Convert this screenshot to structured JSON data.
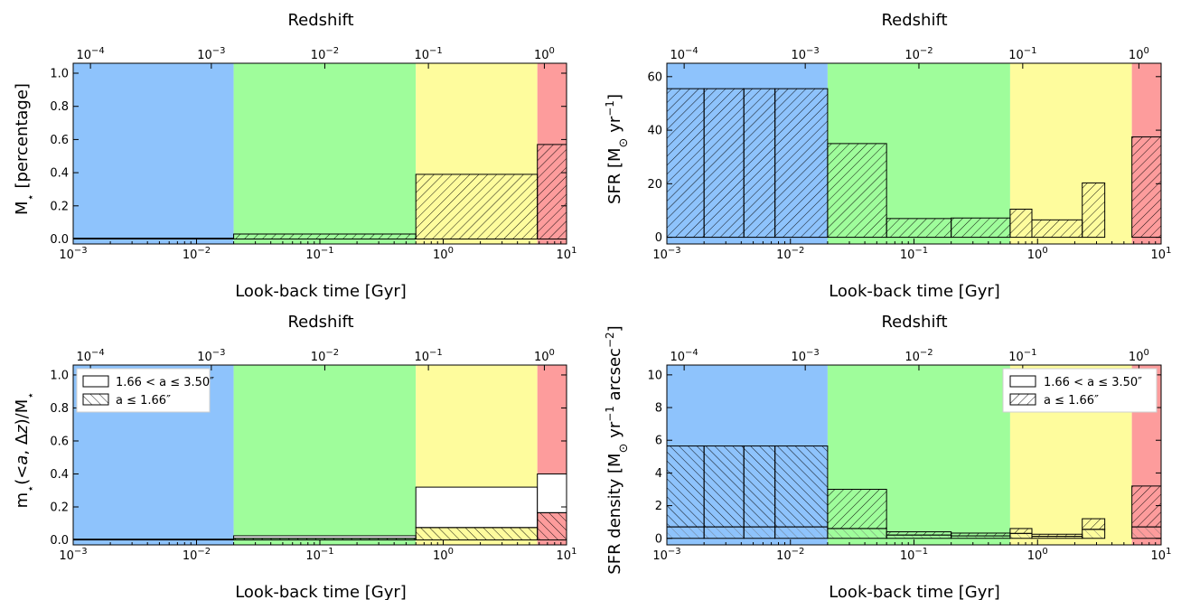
{
  "colors": {
    "band_blue": "#8ec3fc",
    "band_green": "#9ffd9b",
    "band_yellow": "#fefc9d",
    "band_red": "#fd9c9c"
  },
  "chart_data": [
    {
      "type": "bar",
      "panel": "top-left",
      "xlabel": "Look-back time [Gyr]",
      "ylabel": "M$_\\star$ [percentage]",
      "top_xlabel": "Redshift",
      "xscale": "log",
      "xlim": [
        0.001,
        10
      ],
      "ylim": [
        -0.03,
        1.06
      ],
      "xticks": [
        0.001,
        0.01,
        0.1,
        1,
        10
      ],
      "xtick_labels": [
        {
          "b": "10",
          "e": "−3"
        },
        {
          "b": "10",
          "e": "−2"
        },
        {
          "b": "10",
          "e": "−1"
        },
        {
          "b": "10",
          "e": "0"
        },
        {
          "b": "10",
          "e": "1"
        }
      ],
      "yticks": [
        0,
        0.2,
        0.4,
        0.6,
        0.8,
        1.0
      ],
      "ytick_labels": [
        "0.0",
        "0.2",
        "0.4",
        "0.6",
        "0.8",
        "1.0"
      ],
      "top_xtick_labels": [
        {
          "b": "10",
          "e": "−4"
        },
        {
          "b": "10",
          "e": "−3"
        },
        {
          "b": "10",
          "e": "−2"
        },
        {
          "b": "10",
          "e": "−1"
        },
        {
          "b": "10",
          "e": "0"
        }
      ],
      "bands": [
        {
          "x0": 0.001,
          "x1": 0.02,
          "color": "blue"
        },
        {
          "x0": 0.02,
          "x1": 0.6,
          "color": "green"
        },
        {
          "x0": 0.6,
          "x1": 5.8,
          "color": "yellow"
        },
        {
          "x0": 5.8,
          "x1": 10,
          "color": "red"
        }
      ],
      "series": [
        {
          "hatch": "forward",
          "bins": [
            {
              "x0": 0.001,
              "x1": 0.02,
              "y0": 0,
              "y1": 0.005
            },
            {
              "x0": 0.02,
              "x1": 0.6,
              "y0": 0,
              "y1": 0.03
            },
            {
              "x0": 0.6,
              "x1": 5.8,
              "y0": 0,
              "y1": 0.39
            },
            {
              "x0": 5.8,
              "x1": 10,
              "y0": 0,
              "y1": 0.57
            }
          ]
        }
      ]
    },
    {
      "type": "bar",
      "panel": "top-right",
      "xlabel": "Look-back time [Gyr]",
      "ylabel": "SFR [M$_\\odot$ yr$^{-1}$]",
      "top_xlabel": "Redshift",
      "xscale": "log",
      "xlim": [
        0.001,
        10
      ],
      "ylim": [
        -2.5,
        65
      ],
      "xticks": [
        0.001,
        0.01,
        0.1,
        1,
        10
      ],
      "xtick_labels": [
        {
          "b": "10",
          "e": "−3"
        },
        {
          "b": "10",
          "e": "−2"
        },
        {
          "b": "10",
          "e": "−1"
        },
        {
          "b": "10",
          "e": "0"
        },
        {
          "b": "10",
          "e": "1"
        }
      ],
      "yticks": [
        0,
        20,
        40,
        60
      ],
      "ytick_labels": [
        "0",
        "20",
        "40",
        "60"
      ],
      "top_xtick_labels": [
        {
          "b": "10",
          "e": "−4"
        },
        {
          "b": "10",
          "e": "−3"
        },
        {
          "b": "10",
          "e": "−2"
        },
        {
          "b": "10",
          "e": "−1"
        },
        {
          "b": "10",
          "e": "0"
        }
      ],
      "bands": [
        {
          "x0": 0.001,
          "x1": 0.02,
          "color": "blue"
        },
        {
          "x0": 0.02,
          "x1": 0.6,
          "color": "green"
        },
        {
          "x0": 0.6,
          "x1": 5.8,
          "color": "yellow"
        },
        {
          "x0": 5.8,
          "x1": 10,
          "color": "red"
        }
      ],
      "series": [
        {
          "hatch": "forward",
          "bins": [
            {
              "x0": 0.001,
              "x1": 0.002,
              "y0": 0,
              "y1": 55.5
            },
            {
              "x0": 0.002,
              "x1": 0.0042,
              "y0": 0,
              "y1": 55.5
            },
            {
              "x0": 0.0042,
              "x1": 0.0075,
              "y0": 0,
              "y1": 55.5
            },
            {
              "x0": 0.0075,
              "x1": 0.02,
              "y0": 0,
              "y1": 55.5
            },
            {
              "x0": 0.02,
              "x1": 0.06,
              "y0": 0,
              "y1": 35
            },
            {
              "x0": 0.06,
              "x1": 0.2,
              "y0": 0,
              "y1": 7
            },
            {
              "x0": 0.2,
              "x1": 0.6,
              "y0": 0,
              "y1": 7.2
            },
            {
              "x0": 0.6,
              "x1": 0.9,
              "y0": 0,
              "y1": 10.5
            },
            {
              "x0": 0.9,
              "x1": 2.3,
              "y0": 0,
              "y1": 6.5
            },
            {
              "x0": 2.3,
              "x1": 3.5,
              "y0": 0,
              "y1": 20.3
            },
            {
              "x0": 5.8,
              "x1": 10,
              "y0": 0,
              "y1": 37.5
            }
          ]
        }
      ]
    },
    {
      "type": "bar",
      "panel": "bottom-left",
      "xlabel": "Look-back time [Gyr]",
      "ylabel": "m$_\\star$($<a$, $\\Delta z$)/M$_\\star$",
      "top_xlabel": "Redshift",
      "xscale": "log",
      "xlim": [
        0.001,
        10
      ],
      "ylim": [
        -0.03,
        1.06
      ],
      "xticks": [
        0.001,
        0.01,
        0.1,
        1,
        10
      ],
      "xtick_labels": [
        {
          "b": "10",
          "e": "−3"
        },
        {
          "b": "10",
          "e": "−2"
        },
        {
          "b": "10",
          "e": "−1"
        },
        {
          "b": "10",
          "e": "0"
        },
        {
          "b": "10",
          "e": "1"
        }
      ],
      "yticks": [
        0,
        0.2,
        0.4,
        0.6,
        0.8,
        1.0
      ],
      "ytick_labels": [
        "0.0",
        "0.2",
        "0.4",
        "0.6",
        "0.8",
        "1.0"
      ],
      "top_xtick_labels": [
        {
          "b": "10",
          "e": "−4"
        },
        {
          "b": "10",
          "e": "−3"
        },
        {
          "b": "10",
          "e": "−2"
        },
        {
          "b": "10",
          "e": "−1"
        },
        {
          "b": "10",
          "e": "0"
        }
      ],
      "bands": [
        {
          "x0": 0.001,
          "x1": 0.02,
          "color": "blue"
        },
        {
          "x0": 0.02,
          "x1": 0.6,
          "color": "green"
        },
        {
          "x0": 0.6,
          "x1": 5.8,
          "color": "yellow"
        },
        {
          "x0": 5.8,
          "x1": 10,
          "color": "red"
        }
      ],
      "legend": {
        "position": "upper-left",
        "entries": [
          {
            "label": "1.66 < a ≤ 3.50″",
            "hatch": "none"
          },
          {
            "label": "a ≤ 1.66″",
            "hatch": "back"
          }
        ]
      },
      "series": [
        {
          "name": "1.66 < a ≤ 3.50″",
          "hatch": "none",
          "bins": [
            {
              "x0": 0.02,
              "x1": 0.6,
              "y0": 0.01,
              "y1": 0.025
            },
            {
              "x0": 0.6,
              "x1": 5.8,
              "y0": 0.075,
              "y1": 0.32
            },
            {
              "x0": 5.8,
              "x1": 10,
              "y0": 0.165,
              "y1": 0.4
            }
          ]
        },
        {
          "name": "a ≤ 1.66″",
          "hatch": "back",
          "bins": [
            {
              "x0": 0.001,
              "x1": 0.02,
              "y0": 0,
              "y1": 0.005
            },
            {
              "x0": 0.02,
              "x1": 0.6,
              "y0": 0,
              "y1": 0.01
            },
            {
              "x0": 0.6,
              "x1": 5.8,
              "y0": 0,
              "y1": 0.075
            },
            {
              "x0": 5.8,
              "x1": 10,
              "y0": 0,
              "y1": 0.165
            }
          ]
        }
      ]
    },
    {
      "type": "bar",
      "panel": "bottom-right",
      "xlabel": "Look-back time [Gyr]",
      "ylabel": "SFR density [M$_\\odot$ yr$^{-1}$ arcsec$^{-2}$]",
      "top_xlabel": "Redshift",
      "xscale": "log",
      "xlim": [
        0.001,
        10
      ],
      "ylim": [
        -0.4,
        10.6
      ],
      "xticks": [
        0.001,
        0.01,
        0.1,
        1,
        10
      ],
      "xtick_labels": [
        {
          "b": "10",
          "e": "−3"
        },
        {
          "b": "10",
          "e": "−2"
        },
        {
          "b": "10",
          "e": "−1"
        },
        {
          "b": "10",
          "e": "0"
        },
        {
          "b": "10",
          "e": "1"
        }
      ],
      "yticks": [
        0,
        2,
        4,
        6,
        8,
        10
      ],
      "ytick_labels": [
        "0",
        "2",
        "4",
        "6",
        "8",
        "10"
      ],
      "top_xtick_labels": [
        {
          "b": "10",
          "e": "−4"
        },
        {
          "b": "10",
          "e": "−3"
        },
        {
          "b": "10",
          "e": "−2"
        },
        {
          "b": "10",
          "e": "−1"
        },
        {
          "b": "10",
          "e": "0"
        }
      ],
      "bands": [
        {
          "x0": 0.001,
          "x1": 0.02,
          "color": "blue"
        },
        {
          "x0": 0.02,
          "x1": 0.6,
          "color": "green"
        },
        {
          "x0": 0.6,
          "x1": 5.8,
          "color": "yellow"
        },
        {
          "x0": 5.8,
          "x1": 10,
          "color": "red"
        }
      ],
      "legend": {
        "position": "upper-right",
        "entries": [
          {
            "label": "1.66 < a ≤ 3.50″",
            "hatch": "none"
          },
          {
            "label": "a ≤ 1.66″",
            "hatch": "forward"
          }
        ]
      },
      "series": [
        {
          "name": "1.66 < a ≤ 3.50″",
          "hatch": "back",
          "bins": [
            {
              "x0": 0.001,
              "x1": 0.002,
              "y0": 0.7,
              "y1": 5.65
            },
            {
              "x0": 0.002,
              "x1": 0.0042,
              "y0": 0.7,
              "y1": 5.65
            },
            {
              "x0": 0.0042,
              "x1": 0.0075,
              "y0": 0.7,
              "y1": 5.65
            },
            {
              "x0": 0.0075,
              "x1": 0.02,
              "y0": 0.7,
              "y1": 5.65
            }
          ]
        },
        {
          "name": "1.66 < a ≤ 3.50″",
          "hatch": "forward",
          "bins": [
            {
              "x0": 0.02,
              "x1": 0.06,
              "y0": 0.6,
              "y1": 3.0
            },
            {
              "x0": 0.06,
              "x1": 0.2,
              "y0": 0.2,
              "y1": 0.4
            },
            {
              "x0": 0.2,
              "x1": 0.6,
              "y0": 0.15,
              "y1": 0.32
            },
            {
              "x0": 0.6,
              "x1": 0.9,
              "y0": 0.3,
              "y1": 0.6
            },
            {
              "x0": 0.9,
              "x1": 2.3,
              "y0": 0.12,
              "y1": 0.25
            },
            {
              "x0": 2.3,
              "x1": 3.5,
              "y0": 0.55,
              "y1": 1.2
            },
            {
              "x0": 5.8,
              "x1": 10,
              "y0": 0.7,
              "y1": 3.2
            }
          ]
        },
        {
          "name": "a ≤ 1.66″",
          "hatch": "back-light",
          "bins": [
            {
              "x0": 0.001,
              "x1": 0.002,
              "y0": 0,
              "y1": 0.7
            },
            {
              "x0": 0.002,
              "x1": 0.0042,
              "y0": 0,
              "y1": 0.7
            },
            {
              "x0": 0.0042,
              "x1": 0.0075,
              "y0": 0,
              "y1": 0.7
            },
            {
              "x0": 0.0075,
              "x1": 0.02,
              "y0": 0,
              "y1": 0.7
            },
            {
              "x0": 0.02,
              "x1": 0.06,
              "y0": 0,
              "y1": 0.6
            },
            {
              "x0": 0.06,
              "x1": 0.2,
              "y0": 0,
              "y1": 0.2
            },
            {
              "x0": 0.2,
              "x1": 0.6,
              "y0": 0,
              "y1": 0.15
            },
            {
              "x0": 0.6,
              "x1": 0.9,
              "y0": 0,
              "y1": 0.3
            },
            {
              "x0": 0.9,
              "x1": 2.3,
              "y0": 0,
              "y1": 0.12
            },
            {
              "x0": 2.3,
              "x1": 3.5,
              "y0": 0,
              "y1": 0.55
            },
            {
              "x0": 5.8,
              "x1": 10,
              "y0": 0,
              "y1": 0.7
            }
          ]
        }
      ]
    }
  ]
}
